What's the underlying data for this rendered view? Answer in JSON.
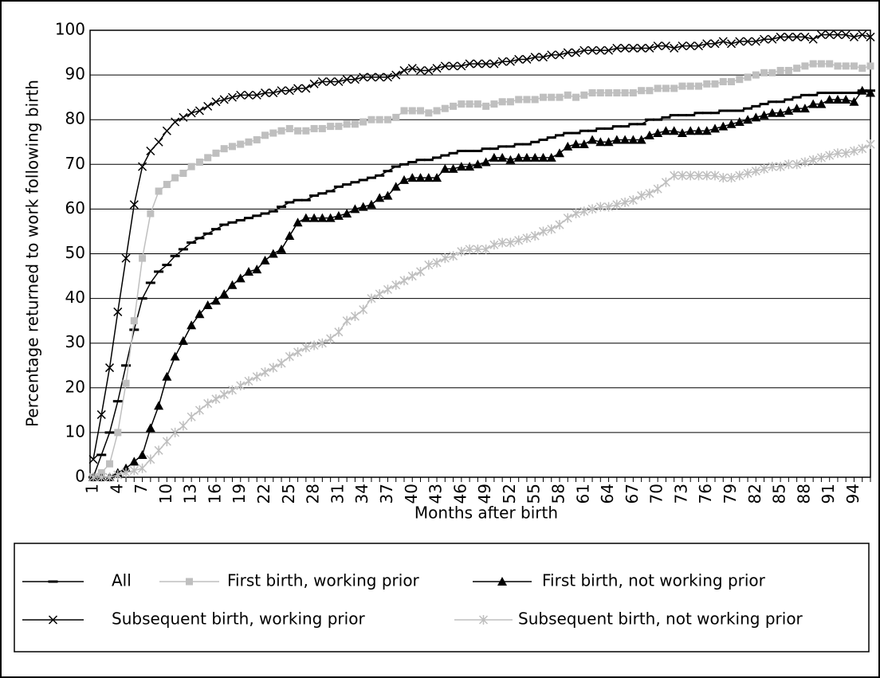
{
  "chart_data": {
    "type": "line",
    "y_label": "Percentage returned to work following birth",
    "x_label": "Months after birth",
    "categories": [
      "1",
      null,
      null,
      "4",
      null,
      null,
      "7",
      null,
      null,
      "10",
      null,
      null,
      "13",
      null,
      null,
      "16",
      null,
      null,
      "19",
      null,
      null,
      "22",
      null,
      null,
      "25",
      null,
      null,
      "28",
      null,
      null,
      "31",
      null,
      null,
      "34",
      null,
      null,
      "37",
      null,
      null,
      "40",
      null,
      null,
      "43",
      null,
      null,
      "46",
      null,
      null,
      "49",
      null,
      null,
      "52",
      null,
      null,
      "55",
      null,
      null,
      "58",
      null,
      null,
      "61",
      null,
      null,
      "64",
      null,
      null,
      "67",
      null,
      null,
      "70",
      null,
      null,
      "73",
      null,
      null,
      "76",
      null,
      null,
      "79",
      null,
      null,
      "82",
      null,
      null,
      "85",
      null,
      null,
      "88",
      null,
      null,
      "91",
      null,
      null,
      "94",
      null,
      null
    ],
    "ylim": [
      0,
      100
    ],
    "yticks": [
      0,
      10,
      20,
      30,
      40,
      50,
      60,
      70,
      80,
      90,
      100
    ],
    "grid": true,
    "legend": "bottom",
    "series": [
      {
        "name": "All",
        "color": "#000000",
        "marker": "dash",
        "values": [
          0,
          5,
          10,
          17,
          25,
          33,
          40,
          43.5,
          46,
          47.5,
          49.5,
          51,
          52.5,
          53.5,
          54.5,
          55.5,
          56.5,
          57,
          57.5,
          58,
          58.5,
          59,
          59.5,
          60.5,
          61.5,
          62,
          62,
          63,
          63.5,
          64,
          65,
          65.5,
          66,
          66.5,
          67,
          67.5,
          68.5,
          69.5,
          70,
          70.5,
          71,
          71,
          71.5,
          72,
          72.5,
          73,
          73,
          73,
          73.5,
          73.5,
          74,
          74,
          74.5,
          74.5,
          75,
          75.5,
          76,
          76.5,
          77,
          77,
          77.5,
          77.5,
          78,
          78,
          78.5,
          78.5,
          79,
          79,
          80,
          80,
          80.5,
          81,
          81,
          81,
          81.5,
          81.5,
          81.5,
          82,
          82,
          82,
          82.5,
          83,
          83.5,
          84,
          84,
          84.5,
          85,
          85.5,
          85.5,
          86,
          86,
          86,
          86,
          86,
          86.5,
          86.5
        ]
      },
      {
        "name": "First birth, working prior",
        "color": "#bfbfbf",
        "marker": "square",
        "values": [
          0,
          1,
          3,
          10,
          21,
          35,
          49,
          59,
          64,
          65.5,
          67,
          68,
          69.5,
          70.5,
          71.5,
          72.5,
          73.5,
          74,
          74.5,
          75,
          75.5,
          76.5,
          77,
          77.5,
          78,
          77.5,
          77.5,
          78,
          78,
          78.5,
          78.5,
          79,
          79,
          79.5,
          80,
          80,
          80,
          80.5,
          82,
          82,
          82,
          81.5,
          82,
          82.5,
          83,
          83.5,
          83.5,
          83.5,
          83,
          83.5,
          84,
          84,
          84.5,
          84.5,
          84.5,
          85,
          85,
          85,
          85.5,
          85,
          85.5,
          86,
          86,
          86,
          86,
          86,
          86,
          86.5,
          86.5,
          87,
          87,
          87,
          87.5,
          87.5,
          87.5,
          88,
          88,
          88.5,
          88.5,
          89,
          89.5,
          90,
          90.5,
          90.5,
          91,
          91,
          91.5,
          92,
          92.5,
          92.5,
          92.5,
          92,
          92,
          92,
          91.5,
          92
        ]
      },
      {
        "name": "First birth, not working prior",
        "color": "#000000",
        "marker": "triangle",
        "values": [
          0,
          0,
          0,
          1,
          2,
          3.5,
          5,
          11,
          16,
          22.5,
          27,
          30.5,
          34,
          36.5,
          38.5,
          39.5,
          41,
          43,
          44.5,
          46,
          46.5,
          48.5,
          50,
          51,
          54,
          57,
          58,
          58,
          58,
          58,
          58.5,
          59,
          60,
          60.5,
          61,
          62.5,
          63,
          65,
          66.5,
          67,
          67,
          67,
          67,
          69,
          69,
          69.5,
          69.5,
          70,
          70.5,
          71.5,
          71.5,
          71,
          71.5,
          71.5,
          71.5,
          71.5,
          71.5,
          72.5,
          74,
          74.5,
          74.5,
          75.5,
          75,
          75,
          75.5,
          75.5,
          75.5,
          75.5,
          76.5,
          77,
          77.5,
          77.5,
          77,
          77.5,
          77.5,
          77.5,
          78,
          78.5,
          79,
          79.5,
          80,
          80.5,
          81,
          81.5,
          81.5,
          82,
          82.5,
          82.5,
          83.5,
          83.5,
          84.5,
          84.5,
          84.5,
          84,
          86.5,
          86
        ]
      },
      {
        "name": "Subsequent birth, working prior",
        "color": "#000000",
        "marker": "x",
        "values": [
          4,
          14,
          24.5,
          37,
          49,
          61,
          69.5,
          73,
          75,
          77.5,
          79.5,
          80.5,
          81.5,
          82,
          83,
          84,
          84.5,
          85,
          85.5,
          85.5,
          85.5,
          86,
          86,
          86.5,
          86.5,
          87,
          87,
          88,
          88.5,
          88.5,
          88.5,
          89,
          89,
          89.5,
          89.5,
          89.5,
          89.5,
          90,
          91,
          91.5,
          91,
          91,
          91.5,
          92,
          92,
          92,
          92.5,
          92.5,
          92.5,
          92.5,
          93,
          93,
          93.5,
          93.5,
          94,
          94,
          94.5,
          94.5,
          95,
          95,
          95.5,
          95.5,
          95.5,
          95.5,
          96,
          96,
          96,
          96,
          96,
          96.5,
          96.5,
          96,
          96.5,
          96.5,
          96.5,
          97,
          97,
          97.5,
          97,
          97.5,
          97.5,
          97.5,
          98,
          98,
          98.5,
          98.5,
          98.5,
          98.5,
          98,
          99,
          99,
          99,
          99,
          98.5,
          99,
          98.5
        ]
      },
      {
        "name": "Subsequent birth, not working prior",
        "color": "#bfbfbf",
        "marker": "asterisk",
        "values": [
          0,
          0,
          0,
          0.5,
          1,
          1.5,
          2,
          4,
          6,
          8,
          10,
          11.5,
          13.5,
          15,
          16.5,
          17.5,
          18.5,
          19.5,
          20.5,
          21.5,
          22.5,
          23.5,
          24.5,
          25.5,
          27,
          28,
          29,
          29.5,
          30,
          31,
          32.5,
          35,
          36,
          37.5,
          40,
          41,
          42,
          43,
          44,
          45,
          46,
          47.5,
          48,
          49,
          49.5,
          50.5,
          51,
          51,
          51,
          52,
          52.5,
          52.5,
          53,
          53.5,
          54,
          55,
          55.5,
          56.5,
          58,
          59,
          59.5,
          60,
          60.5,
          60.5,
          61,
          61.5,
          62,
          63,
          63.5,
          64.5,
          66,
          67.5,
          67.5,
          67.5,
          67.5,
          67.5,
          67.5,
          67,
          67,
          67.5,
          68,
          68.5,
          69,
          69.5,
          69.5,
          70,
          70,
          70.5,
          71,
          71.5,
          72,
          72.5,
          72.5,
          73,
          73.5,
          74.5
        ]
      }
    ]
  }
}
